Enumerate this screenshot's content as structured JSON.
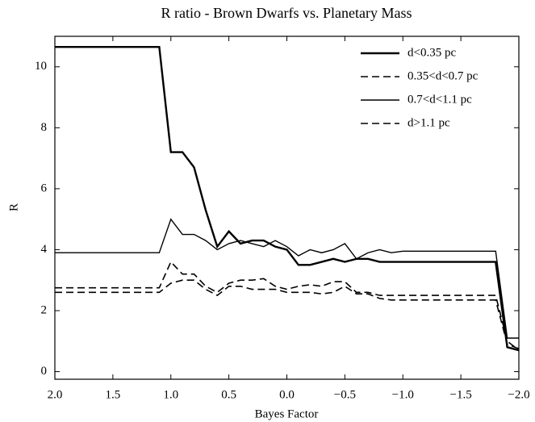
{
  "chart_data": {
    "type": "line",
    "title": "R ratio - Brown Dwarfs vs. Planetary Mass",
    "x_label": "Bayes Factor",
    "y_label": "R",
    "x": [
      2.0,
      1.1,
      1.0,
      0.9,
      0.8,
      0.7,
      0.6,
      0.5,
      0.4,
      0.3,
      0.2,
      0.1,
      0.0,
      -0.1,
      -0.2,
      -0.3,
      -0.4,
      -0.5,
      -0.6,
      -0.7,
      -0.8,
      -0.9,
      -1.0,
      -1.8,
      -1.9,
      -2.0
    ],
    "series": [
      {
        "name": "d<0.35 pc",
        "color": "#000000",
        "linestyle": "solid",
        "linewidth": 2.4,
        "values": [
          10.65,
          10.65,
          7.2,
          7.2,
          6.7,
          5.3,
          4.1,
          4.6,
          4.2,
          4.3,
          4.3,
          4.1,
          4.0,
          3.5,
          3.5,
          3.6,
          3.7,
          3.6,
          3.7,
          3.7,
          3.6,
          3.6,
          3.6,
          3.6,
          0.8,
          0.7
        ]
      },
      {
        "name": "0.35<d<0.7 pc",
        "color": "#000000",
        "linestyle": "dashed",
        "linewidth": 1.6,
        "values": [
          2.75,
          2.75,
          3.6,
          3.2,
          3.2,
          2.8,
          2.6,
          2.9,
          3.0,
          3.0,
          3.05,
          2.8,
          2.7,
          2.8,
          2.85,
          2.8,
          2.95,
          2.95,
          2.6,
          2.6,
          2.5,
          2.5,
          2.5,
          2.5,
          1.0,
          0.7
        ]
      },
      {
        "name": "0.7<d<1.1 pc",
        "color": "#000000",
        "linestyle": "solid",
        "linewidth": 1.4,
        "values": [
          3.9,
          3.9,
          5.0,
          4.5,
          4.5,
          4.3,
          4.0,
          4.2,
          4.3,
          4.2,
          4.1,
          4.3,
          4.1,
          3.8,
          4.0,
          3.9,
          4.0,
          4.2,
          3.7,
          3.9,
          4.0,
          3.9,
          3.95,
          3.95,
          1.1,
          1.1
        ]
      },
      {
        "name": "d>1.1 pc",
        "color": "#000000",
        "linestyle": "dashed",
        "linewidth": 1.6,
        "values": [
          2.6,
          2.6,
          2.9,
          3.0,
          3.0,
          2.7,
          2.5,
          2.8,
          2.8,
          2.7,
          2.7,
          2.7,
          2.6,
          2.6,
          2.6,
          2.55,
          2.6,
          2.8,
          2.55,
          2.55,
          2.4,
          2.35,
          2.35,
          2.35,
          0.9,
          0.75
        ]
      }
    ],
    "xlim": [
      2.0,
      -2.0
    ],
    "xticks": [
      {
        "value": 2.0,
        "label": "2.0"
      },
      {
        "value": 1.5,
        "label": "1.5"
      },
      {
        "value": 1.0,
        "label": "1.0"
      },
      {
        "value": 0.5,
        "label": "0.5"
      },
      {
        "value": 0.0,
        "label": "0.0"
      },
      {
        "value": -0.5,
        "label": "−0.5"
      },
      {
        "value": -1.0,
        "label": "−1.0"
      },
      {
        "value": -1.5,
        "label": "−1.5"
      },
      {
        "value": -2.0,
        "label": "−2.0"
      }
    ],
    "ylim": [
      -0.25,
      11
    ],
    "yticks": [
      0,
      2,
      4,
      6,
      8,
      10
    ],
    "legend": "upper right",
    "grid": false
  }
}
